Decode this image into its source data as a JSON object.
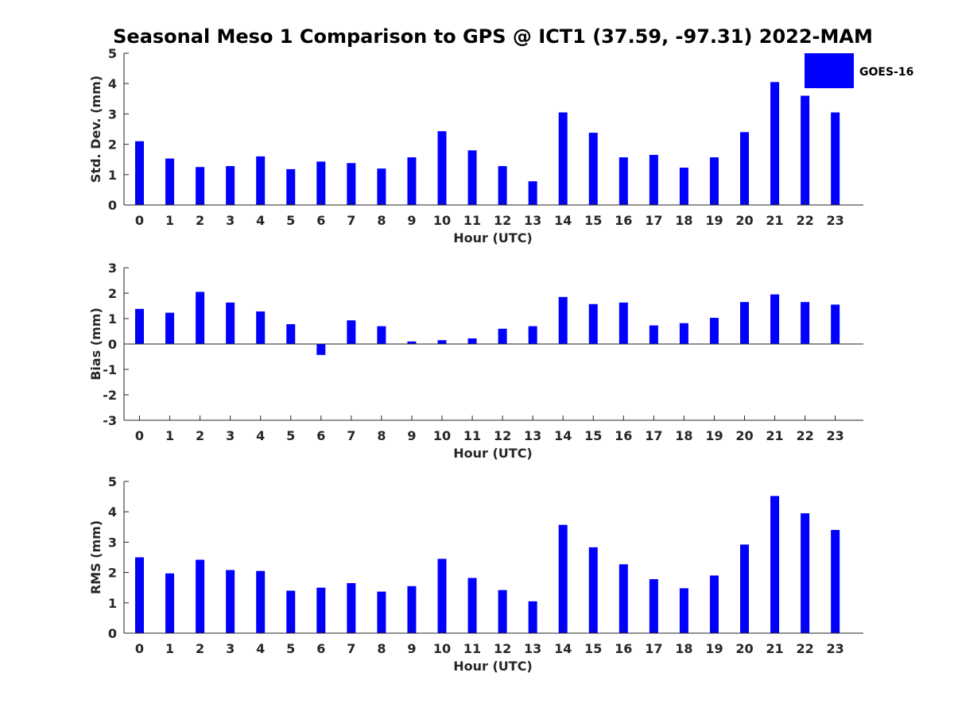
{
  "title": "Seasonal Meso 1 Comparison to GPS @ ICT1 (37.59, -97.31) 2022-MAM",
  "legend": {
    "label": "GOES-16",
    "color": "#0000ff"
  },
  "chart_data": [
    {
      "type": "bar",
      "name": "std",
      "categories": [
        "0",
        "1",
        "2",
        "3",
        "4",
        "5",
        "6",
        "7",
        "8",
        "9",
        "10",
        "11",
        "12",
        "13",
        "14",
        "15",
        "16",
        "17",
        "18",
        "19",
        "20",
        "21",
        "22",
        "23"
      ],
      "series": [
        {
          "name": "GOES-16",
          "color": "#0000ff",
          "values": [
            2.1,
            1.53,
            1.25,
            1.28,
            1.6,
            1.18,
            1.43,
            1.38,
            1.2,
            1.57,
            2.43,
            1.8,
            1.28,
            0.78,
            3.05,
            2.38,
            1.57,
            1.65,
            1.23,
            1.57,
            2.4,
            4.05,
            3.6,
            3.05
          ]
        }
      ],
      "xlabel": "Hour (UTC)",
      "ylabel": "Std. Dev. (mm)",
      "ylim": [
        0,
        5
      ],
      "yticks": [
        "0",
        "1",
        "2",
        "3",
        "4",
        "5"
      ],
      "grid": false,
      "legend": "top-right"
    },
    {
      "type": "bar",
      "name": "bias",
      "categories": [
        "0",
        "1",
        "2",
        "3",
        "4",
        "5",
        "6",
        "7",
        "8",
        "9",
        "10",
        "11",
        "12",
        "13",
        "14",
        "15",
        "16",
        "17",
        "18",
        "19",
        "20",
        "21",
        "22",
        "23"
      ],
      "series": [
        {
          "name": "GOES-16",
          "color": "#0000ff",
          "values": [
            1.38,
            1.23,
            2.05,
            1.63,
            1.28,
            0.78,
            -0.43,
            0.93,
            0.7,
            0.1,
            0.15,
            0.22,
            0.6,
            0.7,
            1.85,
            1.57,
            1.63,
            0.73,
            0.82,
            1.03,
            1.65,
            1.95,
            1.65,
            1.55
          ]
        }
      ],
      "xlabel": "Hour (UTC)",
      "ylabel": "Bias (mm)",
      "ylim": [
        -3,
        3
      ],
      "yticks": [
        "-3",
        "-2",
        "-1",
        "0",
        "1",
        "2",
        "3"
      ],
      "zero_line": true,
      "grid": false
    },
    {
      "type": "bar",
      "name": "rms",
      "categories": [
        "0",
        "1",
        "2",
        "3",
        "4",
        "5",
        "6",
        "7",
        "8",
        "9",
        "10",
        "11",
        "12",
        "13",
        "14",
        "15",
        "16",
        "17",
        "18",
        "19",
        "20",
        "21",
        "22",
        "23"
      ],
      "series": [
        {
          "name": "GOES-16",
          "color": "#0000ff",
          "values": [
            2.5,
            1.97,
            2.42,
            2.08,
            2.05,
            1.4,
            1.5,
            1.65,
            1.37,
            1.55,
            2.45,
            1.82,
            1.42,
            1.05,
            3.57,
            2.83,
            2.27,
            1.78,
            1.48,
            1.9,
            2.92,
            4.52,
            3.95,
            3.4
          ]
        }
      ],
      "xlabel": "Hour (UTC)",
      "ylabel": "RMS (mm)",
      "ylim": [
        0,
        5
      ],
      "yticks": [
        "0",
        "1",
        "2",
        "3",
        "4",
        "5"
      ],
      "grid": false
    }
  ]
}
